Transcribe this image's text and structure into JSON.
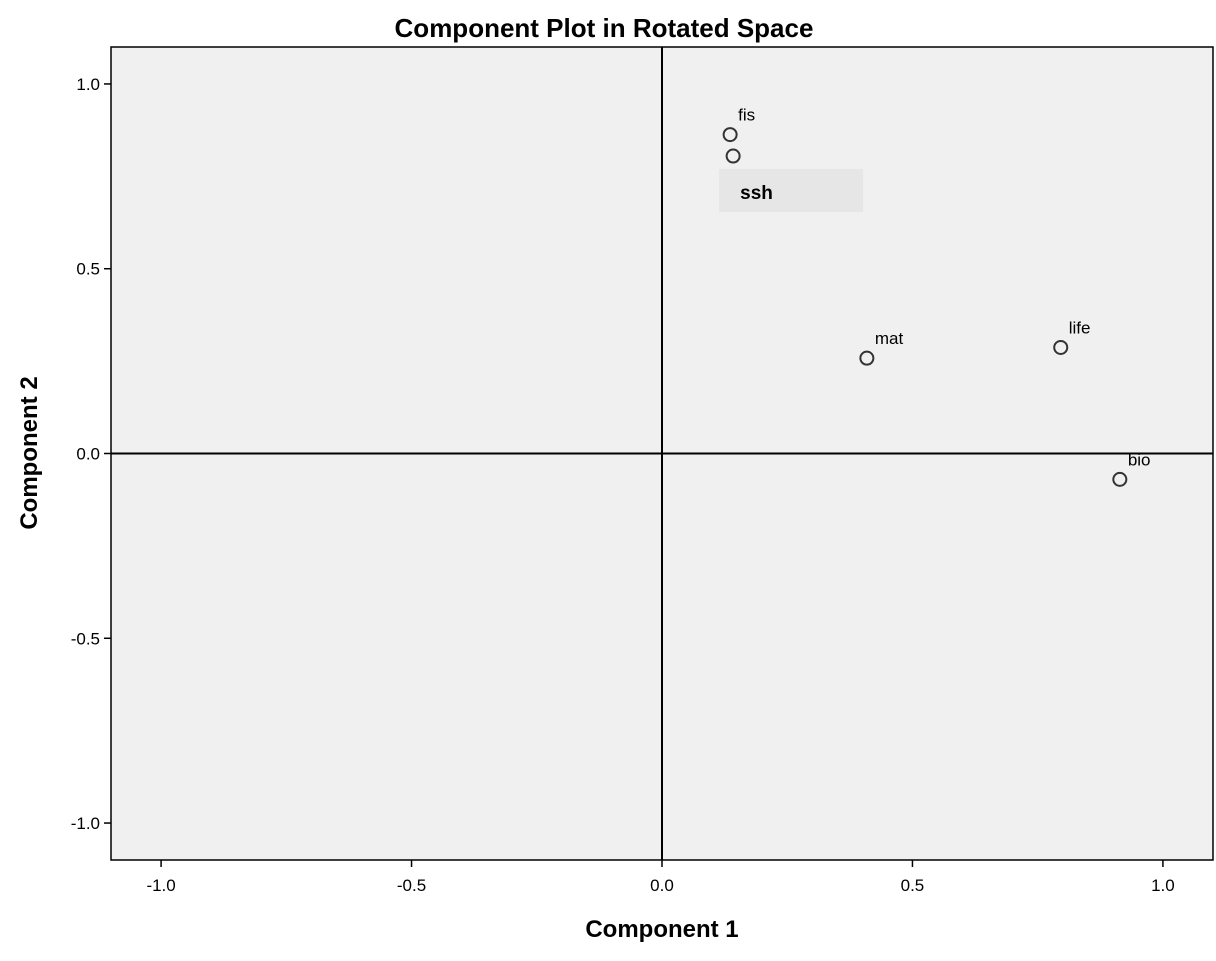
{
  "chart_data": {
    "type": "scatter",
    "title": "Component Plot in Rotated Space",
    "xlabel": "Component 1",
    "ylabel": "Component 2",
    "xlim": [
      -1.1,
      1.1
    ],
    "ylim": [
      -1.1,
      1.1
    ],
    "x_ticks": [
      -1.0,
      -0.5,
      0.0,
      0.5,
      1.0
    ],
    "y_ticks": [
      1.0,
      0.5,
      0.0,
      -0.5,
      -1.0
    ],
    "x_tick_labels": [
      "-1.0",
      "-0.5",
      "0.0",
      "0.5",
      "1.0"
    ],
    "y_tick_labels": [
      "1.0",
      "0.5",
      "0.0",
      "-0.5",
      "-1.0"
    ],
    "grid": false,
    "reference_lines": {
      "x": 0.0,
      "y": 0.0
    },
    "points": [
      {
        "label": "fis",
        "x": 0.136,
        "y": 0.863
      },
      {
        "label": "ssh",
        "x": 0.142,
        "y": 0.805
      },
      {
        "label": "mat",
        "x": 0.409,
        "y": 0.258
      },
      {
        "label": "life",
        "x": 0.796,
        "y": 0.287
      },
      {
        "label": "bio",
        "x": 0.914,
        "y": -0.07
      }
    ],
    "colors": {
      "plot_background": "#f0f0f0",
      "axis_line": "#000000",
      "marker_stroke": "#333333",
      "highlight_box": "#e6e6e6"
    }
  }
}
